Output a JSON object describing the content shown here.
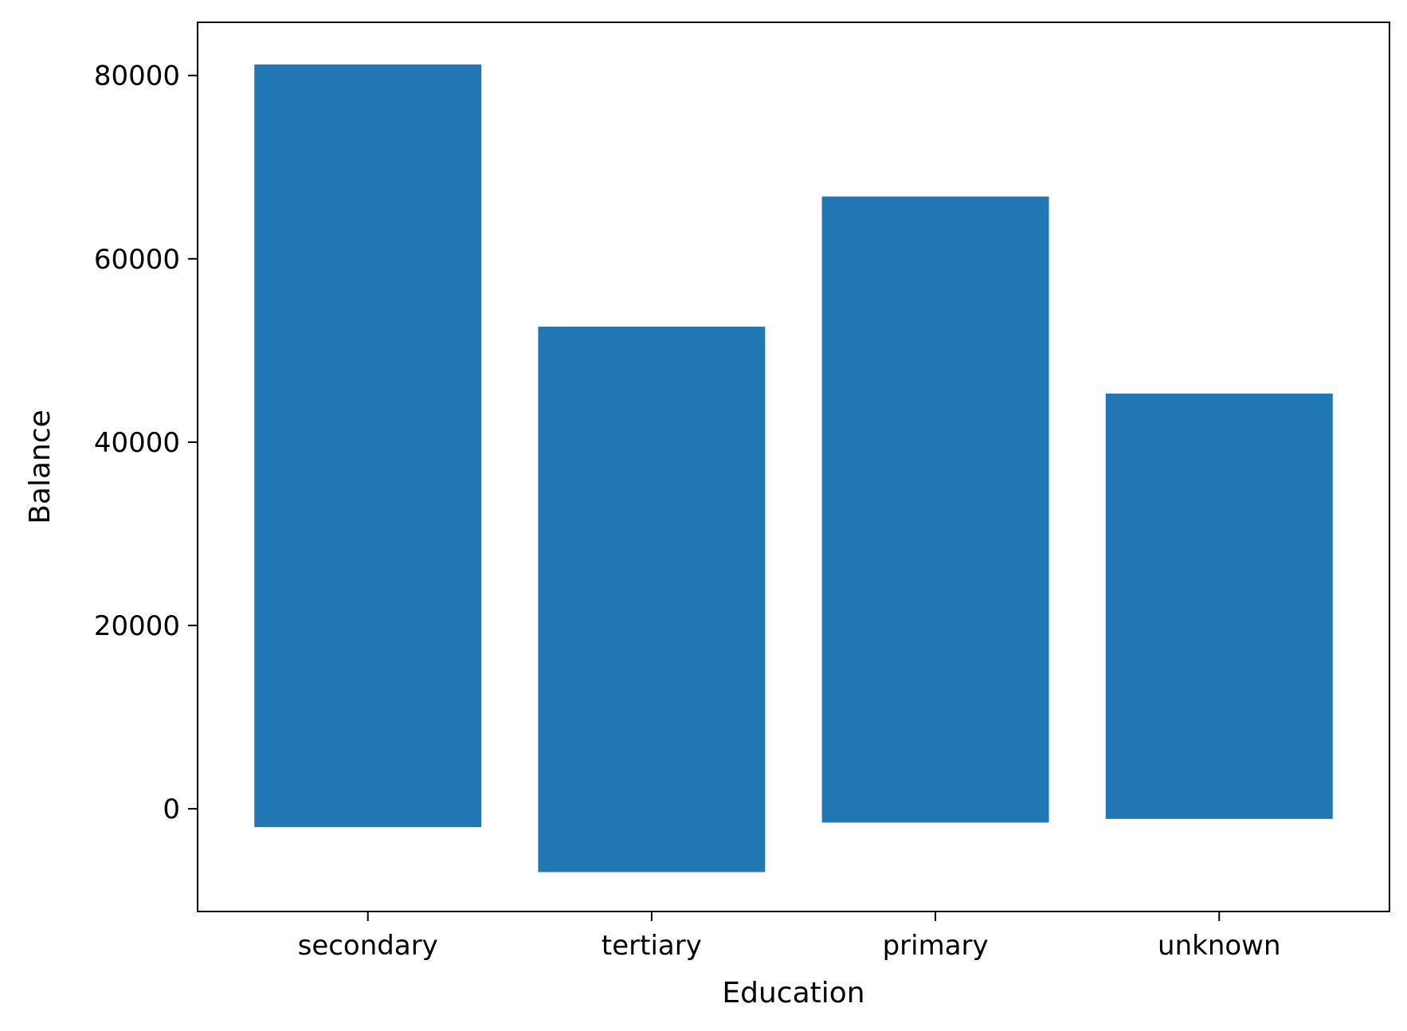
{
  "chart_data": {
    "type": "bar",
    "title": "",
    "xlabel": "Education",
    "ylabel": "Balance",
    "categories": [
      "secondary",
      "tertiary",
      "primary",
      "unknown"
    ],
    "series": [
      {
        "bottom": [
          -2000,
          -6900,
          -1500,
          -1100
        ],
        "top": [
          81200,
          52600,
          66800,
          45300
        ]
      }
    ],
    "ylim": [
      -11200,
      85800
    ],
    "yticks": [
      0,
      20000,
      40000,
      60000,
      80000
    ],
    "ytick_labels": [
      "0",
      "20000",
      "40000",
      "60000",
      "80000"
    ],
    "grid": false,
    "legend": "none"
  },
  "colors": {
    "bar": "#2077b4",
    "axis": "#000000",
    "background": "#ffffff"
  }
}
